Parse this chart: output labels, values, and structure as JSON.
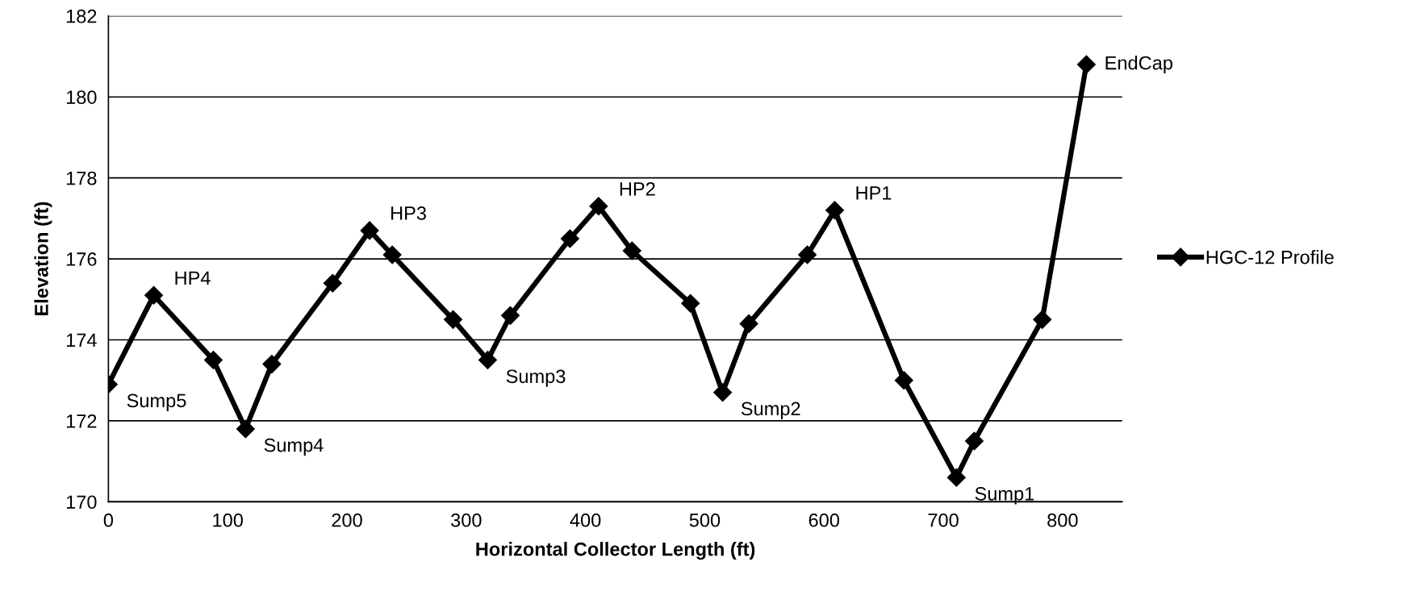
{
  "chart_data": {
    "type": "line",
    "xlabel": "Horizontal Collector Length (ft)",
    "ylabel": "Elevation (ft)",
    "x": [
      0,
      38,
      88,
      115,
      137,
      188,
      219,
      238,
      289,
      318,
      337,
      387,
      411,
      439,
      488,
      515,
      537,
      586,
      609,
      667,
      711,
      726,
      783,
      820
    ],
    "series": [
      {
        "name": "HGC-12 Profile",
        "color": "#000000",
        "values": [
          172.9,
          175.1,
          173.5,
          171.8,
          173.4,
          175.4,
          176.7,
          176.1,
          174.5,
          173.5,
          174.6,
          176.5,
          177.3,
          176.2,
          174.9,
          172.7,
          174.4,
          176.1,
          177.2,
          173.0,
          170.6,
          171.5,
          174.5,
          180.8
        ]
      }
    ],
    "xlim": [
      0,
      850
    ],
    "xticks": [
      0,
      100,
      200,
      300,
      400,
      500,
      600,
      700,
      800
    ],
    "ylim": [
      170,
      182
    ],
    "yticks": [
      170,
      172,
      174,
      176,
      178,
      180,
      182
    ],
    "grid": "y",
    "legend": "right",
    "marker": "diamond",
    "line_style": "solid",
    "annotations": [
      {
        "text": "Sump5",
        "x": 0,
        "y": 172.9
      },
      {
        "text": "HP4",
        "x": 38,
        "y": 175.1
      },
      {
        "text": "Sump4",
        "x": 115,
        "y": 171.8
      },
      {
        "text": "HP3",
        "x": 219,
        "y": 176.7
      },
      {
        "text": "Sump3",
        "x": 318,
        "y": 173.5
      },
      {
        "text": "HP2",
        "x": 411,
        "y": 177.3
      },
      {
        "text": "Sump2",
        "x": 515,
        "y": 172.7
      },
      {
        "text": "HP1",
        "x": 609,
        "y": 177.2
      },
      {
        "text": "Sump1",
        "x": 711,
        "y": 170.6
      },
      {
        "text": "EndCap",
        "x": 820,
        "y": 180.8
      }
    ]
  }
}
